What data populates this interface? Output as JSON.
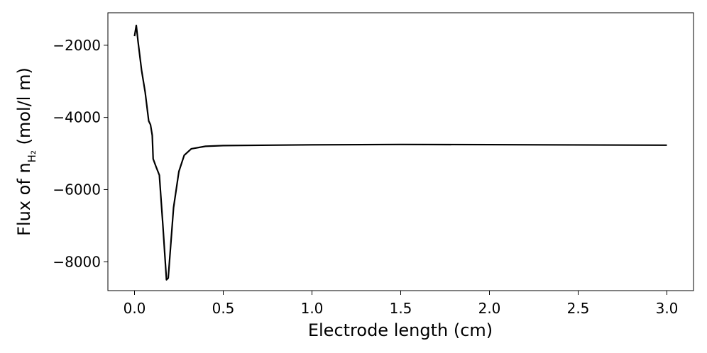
{
  "chart_data": {
    "type": "line",
    "xlabel": "Electrode length (cm)",
    "ylabel": {
      "main": "Flux of n",
      "sub": "H₂",
      "unit": " (mol/l m)"
    },
    "x": [
      0.0,
      0.01,
      0.02,
      0.04,
      0.06,
      0.08,
      0.09,
      0.1,
      0.105,
      0.12,
      0.14,
      0.16,
      0.18,
      0.19,
      0.2,
      0.22,
      0.25,
      0.28,
      0.32,
      0.4,
      0.5,
      1.0,
      1.5,
      2.0,
      3.0
    ],
    "series": [
      {
        "color": "#000000",
        "values": [
          -1750,
          -1450,
          -1900,
          -2700,
          -3300,
          -4100,
          -4200,
          -4500,
          -5150,
          -5350,
          -5600,
          -7000,
          -8500,
          -8450,
          -7800,
          -6500,
          -5500,
          -5050,
          -4870,
          -4800,
          -4780,
          -4760,
          -4750,
          -4755,
          -4770
        ]
      }
    ],
    "xlim": [
      -0.15,
      3.15
    ],
    "xticks": [
      {
        "value": 0,
        "label": "0.0"
      },
      0.5,
      {
        "value": 1,
        "label": "1.0"
      },
      1.5,
      {
        "value": 2,
        "label": "2.0"
      },
      2.5,
      {
        "value": 3,
        "label": "3.0"
      }
    ],
    "ylim": [
      -8800,
      -1100
    ],
    "yticks": [
      {
        "value": -8000,
        "label": "−8000"
      },
      {
        "value": -6000,
        "label": "−6000"
      },
      {
        "value": -4000,
        "label": "−4000"
      },
      {
        "value": -2000,
        "label": "−2000"
      }
    ],
    "grid": false
  }
}
